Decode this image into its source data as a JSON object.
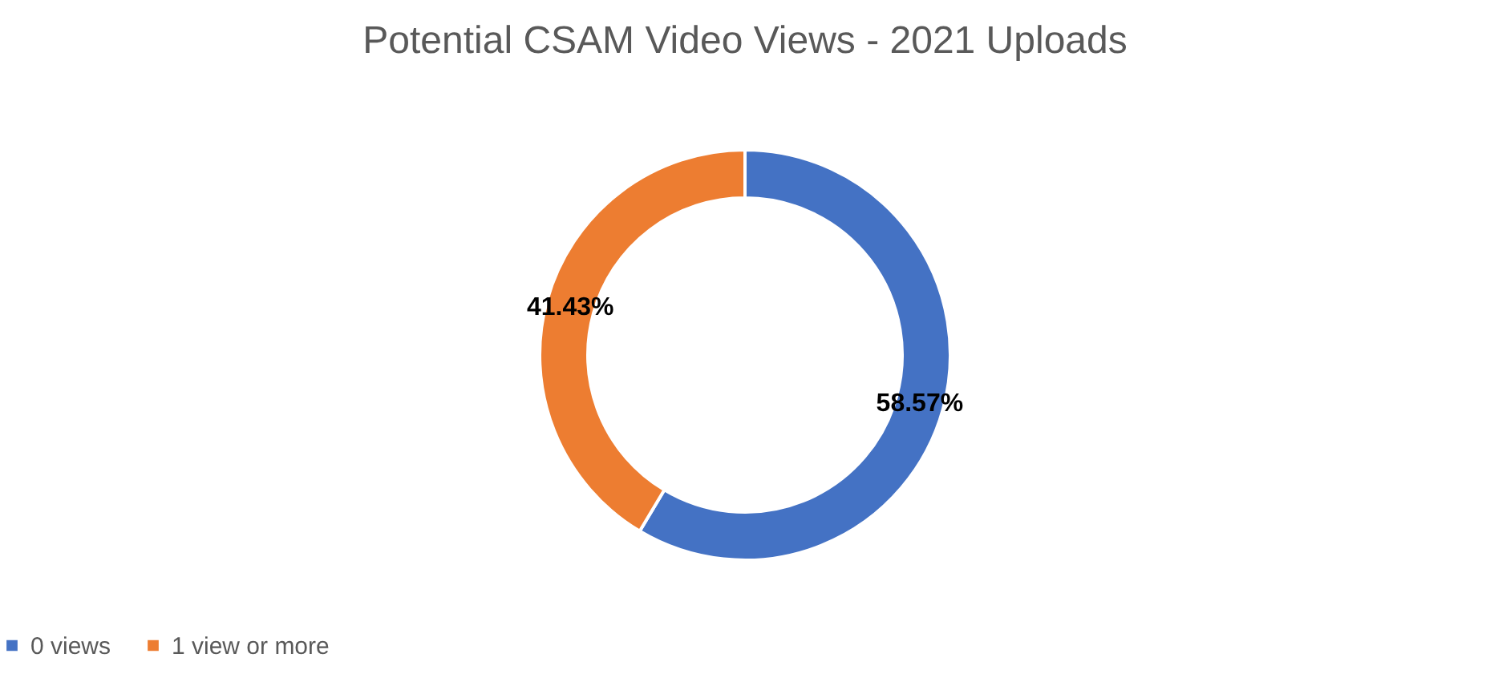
{
  "chart_data": {
    "type": "donut",
    "title": "Potential CSAM Video Views - 2021 Uploads",
    "categories": [
      "0 views",
      "1 view or more"
    ],
    "values": [
      58.57,
      41.43
    ],
    "colors": [
      "#4472c4",
      "#ed7d31"
    ],
    "value_labels": [
      "58.57%",
      "41.43%"
    ],
    "legend": "bottom"
  }
}
